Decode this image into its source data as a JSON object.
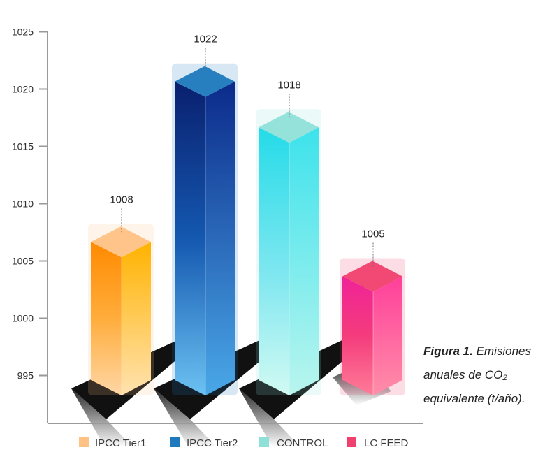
{
  "chart_data": {
    "type": "bar",
    "categories": [
      "IPCC Tier1",
      "IPCC Tier2",
      "CONTROL",
      "LC FEED"
    ],
    "values": [
      1008,
      1022,
      1018,
      1005
    ],
    "data_labels": [
      "1008",
      "1022",
      "1018",
      "1005"
    ],
    "yticks": [
      995,
      1000,
      1005,
      1010,
      1015,
      1020,
      1025
    ],
    "ytick_labels": [
      "995",
      "1000",
      "1005",
      "1010",
      "1015",
      "1020",
      "1025"
    ],
    "ylim": [
      991,
      1025
    ],
    "grid": false,
    "legend_position": "bottom",
    "series_colors": [
      "#ffc184",
      "#1f79bd",
      "#8fe0d8",
      "#f0406e"
    ]
  },
  "caption": {
    "bold": "Figura 1.",
    "line1_rest": " Emisiones",
    "line2": "anuales de CO₂",
    "line3": "equivalente (t/año)."
  }
}
